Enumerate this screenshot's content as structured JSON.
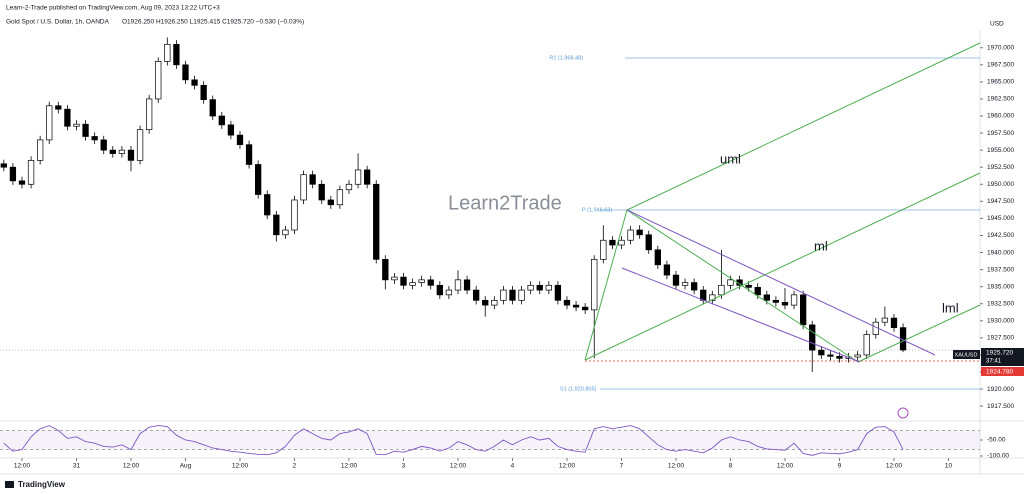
{
  "header": {
    "publisher": "Learn-2-Trade published on TradingView.com, Aug 09, 2023 13:22 UTC+3",
    "symbol": "Gold Spot / U.S. Dollar, 1h, OANDA",
    "ohlc": "O1926.250 H1926.250 L1925.415 C1925.720 −0.530 (−0.03%)"
  },
  "overlay": {
    "watermark": "Learn2Trade",
    "r1": "R1 (1,968.48)",
    "p": "P (1,946.63)",
    "s1": "S1 (1,920.805)",
    "uml": "uml",
    "ml": "ml",
    "lml": "lml",
    "symbol_tag": "XAUUSD",
    "price_tag": "1925.720",
    "countdown": "37:41",
    "pivot_tag": "1924.780",
    "currency": "USD"
  },
  "footer": {
    "brand": "TradingView"
  },
  "chart_data": [
    {
      "type": "candlestick",
      "up_color": "#ffffff",
      "down_color": "#000000",
      "outline": "#000000",
      "x": [
        0,
        1,
        2,
        3,
        4,
        5,
        6,
        7,
        8,
        9,
        10,
        11,
        12,
        13,
        14,
        15,
        16,
        17,
        18,
        19,
        20,
        21,
        22,
        23,
        24,
        25,
        26,
        27,
        28,
        29,
        30,
        31,
        32,
        33,
        34,
        35,
        36,
        37,
        38,
        39,
        40,
        41,
        42,
        43,
        44,
        45,
        46,
        47,
        48,
        49,
        50,
        51,
        52,
        53,
        54,
        55,
        56,
        57,
        58,
        59,
        60,
        61,
        62,
        63,
        64,
        65,
        66,
        67,
        68,
        69,
        70,
        71,
        72,
        73,
        74,
        75,
        76,
        77,
        78,
        79,
        80,
        81,
        82,
        83,
        84,
        85,
        86,
        87,
        88,
        89,
        90,
        91,
        92,
        93,
        94,
        95,
        96,
        97,
        98,
        99
      ],
      "open": [
        1953.0,
        1952.5,
        1950.5,
        1950.0,
        1953.5,
        1956.5,
        1961.5,
        1961.0,
        1958.5,
        1958.8,
        1957.0,
        1956.5,
        1955.0,
        1954.5,
        1955.0,
        1953.5,
        1958.0,
        1962.5,
        1968.0,
        1970.5,
        1967.5,
        1965.3,
        1964.5,
        1962.4,
        1960.0,
        1958.7,
        1957.2,
        1955.8,
        1952.9,
        1948.5,
        1945.5,
        1942.6,
        1943.3,
        1947.7,
        1951.4,
        1950.0,
        1947.7,
        1947.0,
        1949.2,
        1950.0,
        1952.1,
        1950.0,
        1939.0,
        1936.0,
        1936.4,
        1935.2,
        1935.6,
        1936.0,
        1935.2,
        1933.8,
        1934.5,
        1936.0,
        1934.5,
        1933.0,
        1932.3,
        1933.0,
        1934.5,
        1933.0,
        1934.5,
        1935.2,
        1934.5,
        1935.2,
        1933.0,
        1932.3,
        1932.0,
        1931.6,
        1939.0,
        1941.8,
        1941.1,
        1941.8,
        1943.3,
        1942.6,
        1940.4,
        1938.2,
        1936.7,
        1935.2,
        1935.6,
        1934.5,
        1933.0,
        1933.8,
        1935.2,
        1936.0,
        1935.2,
        1934.9,
        1933.8,
        1933.0,
        1932.7,
        1932.3,
        1933.8,
        1929.4,
        1925.7,
        1925.0,
        1924.8,
        1924.5,
        1924.7,
        1925.0,
        1928.0,
        1929.8,
        1930.4,
        1929.0
      ],
      "high": [
        1953.6,
        1953.1,
        1951.1,
        1954.1,
        1957.1,
        1962.1,
        1962.1,
        1961.6,
        1959.4,
        1959.4,
        1957.6,
        1957.1,
        1955.6,
        1955.6,
        1955.6,
        1958.6,
        1963.1,
        1968.6,
        1971.5,
        1971.1,
        1968.1,
        1965.9,
        1965.1,
        1963.0,
        1960.6,
        1959.3,
        1957.8,
        1956.4,
        1953.5,
        1949.1,
        1946.1,
        1943.9,
        1948.3,
        1952.0,
        1952.0,
        1950.6,
        1948.3,
        1949.8,
        1950.6,
        1954.5,
        1952.7,
        1950.6,
        1939.6,
        1937.0,
        1937.0,
        1936.2,
        1936.6,
        1936.6,
        1935.8,
        1935.1,
        1937.4,
        1936.6,
        1935.1,
        1933.6,
        1933.6,
        1935.1,
        1935.1,
        1935.1,
        1935.8,
        1935.8,
        1935.8,
        1935.8,
        1933.6,
        1932.9,
        1932.6,
        1939.6,
        1944.0,
        1942.4,
        1942.4,
        1943.9,
        1944.0,
        1943.2,
        1941.0,
        1938.8,
        1937.3,
        1936.2,
        1936.2,
        1935.1,
        1934.4,
        1940.4,
        1936.6,
        1936.6,
        1935.8,
        1935.5,
        1934.4,
        1933.6,
        1934.8,
        1934.4,
        1934.4,
        1930.0,
        1926.3,
        1925.6,
        1925.4,
        1925.3,
        1925.6,
        1928.6,
        1930.4,
        1932.1,
        1931.0,
        1929.6
      ],
      "low": [
        1951.9,
        1949.9,
        1949.4,
        1949.4,
        1952.9,
        1955.9,
        1960.4,
        1957.9,
        1957.9,
        1956.4,
        1955.9,
        1954.4,
        1953.9,
        1953.9,
        1951.9,
        1952.9,
        1957.4,
        1961.9,
        1967.4,
        1966.9,
        1964.7,
        1963.9,
        1961.8,
        1959.4,
        1958.1,
        1956.6,
        1955.2,
        1952.3,
        1947.9,
        1944.9,
        1941.6,
        1942.0,
        1942.7,
        1947.1,
        1949.4,
        1947.1,
        1946.4,
        1946.4,
        1948.6,
        1949.4,
        1949.4,
        1938.4,
        1934.6,
        1935.4,
        1934.6,
        1934.6,
        1935.0,
        1934.6,
        1933.2,
        1933.2,
        1933.9,
        1933.9,
        1932.4,
        1930.6,
        1931.7,
        1932.4,
        1932.4,
        1932.4,
        1933.9,
        1933.9,
        1933.9,
        1932.4,
        1931.7,
        1931.4,
        1931.0,
        1924.5,
        1938.4,
        1940.5,
        1940.5,
        1941.2,
        1942.0,
        1939.8,
        1937.6,
        1936.1,
        1934.6,
        1934.6,
        1933.9,
        1932.4,
        1932.4,
        1933.2,
        1934.6,
        1934.6,
        1934.3,
        1933.2,
        1932.4,
        1932.1,
        1931.7,
        1931.7,
        1928.8,
        1922.5,
        1924.4,
        1924.2,
        1923.9,
        1923.9,
        1924.1,
        1924.4,
        1927.4,
        1929.2,
        1928.4,
        1925.415
      ],
      "close": [
        1952.5,
        1950.5,
        1950.0,
        1953.5,
        1956.5,
        1961.5,
        1961.0,
        1958.5,
        1958.8,
        1957.0,
        1956.5,
        1955.0,
        1954.5,
        1955.0,
        1953.5,
        1958.0,
        1962.5,
        1968.0,
        1970.5,
        1967.5,
        1965.3,
        1964.5,
        1962.4,
        1960.0,
        1958.7,
        1957.2,
        1955.8,
        1952.9,
        1948.5,
        1945.5,
        1942.6,
        1943.3,
        1947.7,
        1951.4,
        1950.0,
        1947.7,
        1947.0,
        1949.2,
        1950.0,
        1952.1,
        1950.0,
        1939.0,
        1936.0,
        1936.4,
        1935.2,
        1935.6,
        1936.0,
        1935.2,
        1933.8,
        1934.5,
        1936.0,
        1934.5,
        1933.0,
        1932.3,
        1933.0,
        1934.5,
        1933.0,
        1934.5,
        1935.2,
        1934.5,
        1935.2,
        1933.0,
        1932.3,
        1932.0,
        1931.6,
        1939.0,
        1941.8,
        1941.1,
        1941.8,
        1943.3,
        1942.6,
        1940.4,
        1938.2,
        1936.7,
        1935.2,
        1935.6,
        1934.5,
        1933.0,
        1933.8,
        1935.2,
        1936.0,
        1935.2,
        1934.9,
        1933.8,
        1933.0,
        1932.7,
        1932.3,
        1933.8,
        1929.4,
        1925.7,
        1925.0,
        1924.8,
        1924.5,
        1924.7,
        1925.0,
        1928.0,
        1929.8,
        1930.4,
        1929.0,
        1925.72
      ],
      "xlim": [
        -0.42,
        107.47
      ],
      "ylim": [
        1916.2,
        1972.6
      ],
      "yticks": [
        {
          "value": 1917.5,
          "label": "1917.500"
        },
        {
          "value": 1920,
          "label": "1920.000"
        },
        {
          "value": 1922.5,
          "label": "1922.500"
        },
        {
          "value": 1925,
          "label": "1925.000"
        },
        {
          "value": 1927.5,
          "label": "1927.500"
        },
        {
          "value": 1930,
          "label": "1930.000"
        },
        {
          "value": 1932.5,
          "label": "1932.500"
        },
        {
          "value": 1935,
          "label": "1935.000"
        },
        {
          "value": 1937.5,
          "label": "1937.500"
        },
        {
          "value": 1940,
          "label": "1940.000"
        },
        {
          "value": 1942.5,
          "label": "1942.500"
        },
        {
          "value": 1945,
          "label": "1945.000"
        },
        {
          "value": 1947.5,
          "label": "1947.500"
        },
        {
          "value": 1950,
          "label": "1950.000"
        },
        {
          "value": 1952.5,
          "label": "1952.500"
        },
        {
          "value": 1955,
          "label": "1955.000"
        },
        {
          "value": 1957.5,
          "label": "1957.500"
        },
        {
          "value": 1960,
          "label": "1960.000"
        },
        {
          "value": 1962.5,
          "label": "1962.500"
        },
        {
          "value": 1965,
          "label": "1965.000"
        },
        {
          "value": 1967.5,
          "label": "1967.500"
        },
        {
          "value": 1970,
          "label": "1970.000"
        }
      ],
      "xticks": [
        {
          "value": 2,
          "label": "12:00"
        },
        {
          "value": 8,
          "label": "31"
        },
        {
          "value": 14,
          "label": "12:00"
        },
        {
          "value": 20,
          "label": "Aug"
        },
        {
          "value": 26,
          "label": "12:00"
        },
        {
          "value": 32,
          "label": "2"
        },
        {
          "value": 38,
          "label": "12:00"
        },
        {
          "value": 44,
          "label": "3"
        },
        {
          "value": 50,
          "label": "12:00"
        },
        {
          "value": 56,
          "label": "4"
        },
        {
          "value": 62,
          "label": "12:00"
        },
        {
          "value": 68,
          "label": "7"
        },
        {
          "value": 74,
          "label": "12:00"
        },
        {
          "value": 80,
          "label": "8"
        },
        {
          "value": 86,
          "label": "12:00"
        },
        {
          "value": 92,
          "label": "9"
        },
        {
          "value": 98,
          "label": "12:00"
        },
        {
          "value": 104,
          "label": "10"
        }
      ]
    },
    {
      "type": "line",
      "color": "#7e57c2",
      "xlim": [
        -0.42,
        107.47
      ],
      "ylim": [
        -100,
        0
      ],
      "band": [
        -80,
        -20
      ],
      "yticks": [
        {
          "value": -50,
          "label": "-50.00"
        },
        {
          "value": -100,
          "label": "-100.00"
        }
      ],
      "values": [
        -60,
        -85,
        -80,
        -40,
        -15,
        -5,
        -20,
        -45,
        -40,
        -55,
        -60,
        -70,
        -72,
        -65,
        -80,
        -30,
        -10,
        -5,
        -8,
        -35,
        -50,
        -55,
        -65,
        -75,
        -80,
        -85,
        -88,
        -92,
        -95,
        -96,
        -90,
        -70,
        -35,
        -15,
        -30,
        -45,
        -50,
        -30,
        -25,
        -15,
        -30,
        -95,
        -96,
        -85,
        -88,
        -80,
        -70,
        -75,
        -85,
        -75,
        -55,
        -65,
        -80,
        -85,
        -70,
        -50,
        -65,
        -50,
        -40,
        -50,
        -45,
        -70,
        -80,
        -85,
        -88,
        -15,
        -8,
        -15,
        -10,
        -5,
        -15,
        -40,
        -65,
        -80,
        -85,
        -80,
        -85,
        -90,
        -75,
        -50,
        -40,
        -50,
        -55,
        -70,
        -78,
        -80,
        -82,
        -60,
        -92,
        -98,
        -90,
        -92,
        -93,
        -88,
        -80,
        -30,
        -10,
        -8,
        -25,
        -80
      ]
    }
  ]
}
